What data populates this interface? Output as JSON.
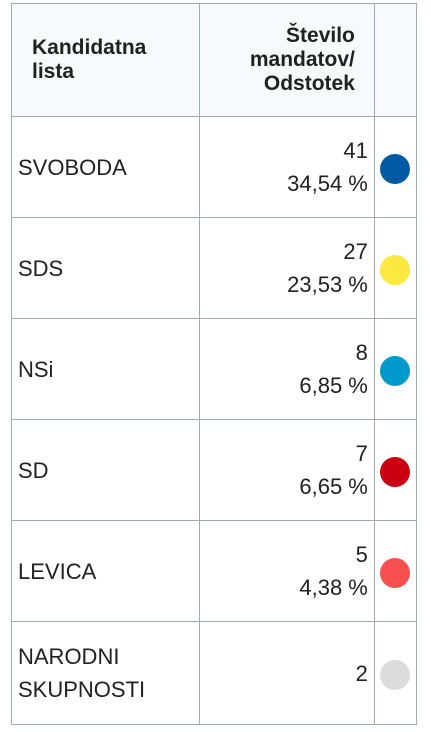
{
  "table": {
    "headers": {
      "list": "Kandidatna lista",
      "seats": "Število mandatov/ Odstotek",
      "color": ""
    },
    "rows": [
      {
        "list": "SVOBODA",
        "seats": "41",
        "percent": "34,54 %",
        "color": "#005ba4"
      },
      {
        "list": "SDS",
        "seats": "27",
        "percent": "23,53 %",
        "color": "#fce83f"
      },
      {
        "list": "NSi",
        "seats": "8",
        "percent": "6,85 %",
        "color": "#0099cc"
      },
      {
        "list": "SD",
        "seats": "7",
        "percent": "6,65 %",
        "color": "#cc0013"
      },
      {
        "list": "LEVICA",
        "seats": "5",
        "percent": "4,38 %",
        "color": "#f7504f"
      },
      {
        "list": "NARODNI SKUPNOSTI",
        "seats": "2",
        "percent": "",
        "color": "#dcdcdc"
      }
    ]
  }
}
